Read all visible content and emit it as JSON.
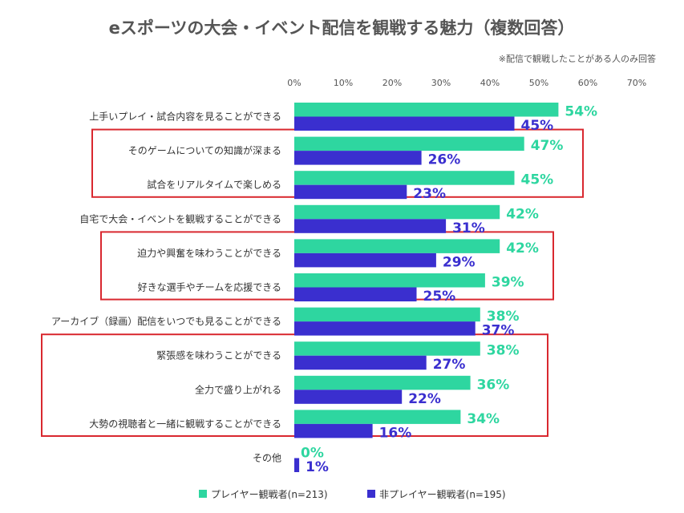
{
  "chart_data": {
    "type": "bar",
    "orientation": "horizontal",
    "title": "eスポーツの大会・イベント配信を観戦する魅力（複数回答）",
    "note": "※配信で観戦したことがある人のみ回答",
    "x_ticks": [
      "0%",
      "10%",
      "20%",
      "30%",
      "40%",
      "50%",
      "60%",
      "70%"
    ],
    "xlim": [
      0,
      70
    ],
    "categories": [
      "上手いプレイ・試合内容を見ることができる",
      "そのゲームについての知識が深まる",
      "試合をリアルタイムで楽しめる",
      "自宅で大会・イベントを観戦することができる",
      "迫力や興奮を味わうことができる",
      "好きな選手やチームを応援できる",
      "アーカイブ（録画）配信をいつでも見ることができる",
      "緊張感を味わうことができる",
      "全力で盛り上がれる",
      "大勢の視聴者と一緒に観戦することができる",
      "その他"
    ],
    "series": [
      {
        "name": "プレイヤー観戦者(n=213)",
        "color": "#2ed6a0",
        "values": [
          54,
          47,
          45,
          42,
          42,
          39,
          38,
          38,
          36,
          34,
          0
        ],
        "labels": [
          "54%",
          "47%",
          "45%",
          "42%",
          "42%",
          "39%",
          "38%",
          "38%",
          "36%",
          "34%",
          "0%"
        ]
      },
      {
        "name": "非プレイヤー観戦者(n=195)",
        "color": "#3a2fcf",
        "values": [
          45,
          26,
          23,
          31,
          29,
          25,
          37,
          27,
          22,
          16,
          1
        ],
        "labels": [
          "45%",
          "26%",
          "23%",
          "31%",
          "29%",
          "25%",
          "37%",
          "27%",
          "22%",
          "16%",
          "1%"
        ]
      }
    ],
    "highlight_groups": [
      [
        1,
        2
      ],
      [
        4,
        5
      ],
      [
        7,
        8,
        9
      ]
    ],
    "highlight_color": "#d9282f",
    "grid": false,
    "legend_position": "bottom"
  }
}
